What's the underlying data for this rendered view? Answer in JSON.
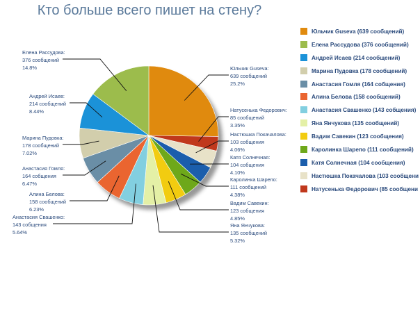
{
  "chart_data": {
    "type": "pie",
    "title": "Кто больше всего пишет на стену?",
    "slices": [
      {
        "legend": "Юльчик Guseva (639 сообщений)",
        "name": "Юльчик Guseva:",
        "count": "639 сообщений",
        "pct": "25.2%",
        "value": 25.2,
        "color": "#e08a0e"
      },
      {
        "legend": "Натусенька Федорович (85 сообщени",
        "name": "Натусенька Федорович:",
        "count": "85 сообщений",
        "pct": "3.35%",
        "value": 3.35,
        "color": "#c0381c"
      },
      {
        "legend": "Настюшка Покачалова (103 сообщени",
        "name": "Настюшка Покачалова:",
        "count": "103 собщения",
        "pct": "4.06%",
        "value": 4.06,
        "color": "#e8e2c8"
      },
      {
        "legend": "Катя Солнечная (104 сообщения)",
        "name": "Катя Солнечная:",
        "count": "104 собщения",
        "pct": "4.10%",
        "value": 4.1,
        "color": "#1b5eac"
      },
      {
        "legend": "Каролинка Шарепо (111 сообщений)",
        "name": "Каролинка Шарепо:",
        "count": "111 сообщений",
        "pct": "4.38%",
        "value": 4.38,
        "color": "#6ea81a"
      },
      {
        "legend": "Вадим Савекин (123 сообщения)",
        "name": "Вадим Савекин:",
        "count": "123 собщения",
        "pct": "4.85%",
        "value": 4.85,
        "color": "#f2cc10"
      },
      {
        "legend": "Яна Янчукова (135 сообщений)",
        "name": "Яна Янчукова:",
        "count": "135 сообщений",
        "pct": "5.32%",
        "value": 5.32,
        "color": "#e4f0a6"
      },
      {
        "legend": "Анастасия Свашенко (143 собщения)",
        "name": "Анастасия Свашенко:",
        "count": "143 собщения",
        "pct": "5.64%",
        "value": 5.64,
        "color": "#82cfe0"
      },
      {
        "legend": "Алина Белова (158 сообщений)",
        "name": "Алина Белова:",
        "count": "158 сообщений",
        "pct": "6.23%",
        "value": 6.23,
        "color": "#ea6530"
      },
      {
        "legend": "Анастасия Гомля (164 собщения)",
        "name": "Анастасия Гомля:",
        "count": "164 собщения",
        "pct": "6.47%",
        "value": 6.47,
        "color": "#6a8ea6"
      },
      {
        "legend": "Марина Пудовка (178 сообщений)",
        "name": "Марина Пудовка:",
        "count": "178 сообщений",
        "pct": "7.02%",
        "value": 7.02,
        "color": "#d2ceac"
      },
      {
        "legend": "Андрей Исаев (214 сообщений)",
        "name": "Андрей Исаев:",
        "count": "214 сообщений",
        "pct": "8.44%",
        "value": 8.44,
        "color": "#1b92d8"
      },
      {
        "legend": "Елена Рассудова (376 сообщений)",
        "name": "Елена Рассудова:",
        "count": "376 сообщений",
        "pct": "14.8%",
        "value": 14.8,
        "color": "#9cbc4c"
      }
    ],
    "legend_order": [
      0,
      12,
      11,
      10,
      9,
      8,
      7,
      6,
      5,
      4,
      3,
      2,
      1
    ],
    "legend_placement": "right"
  }
}
